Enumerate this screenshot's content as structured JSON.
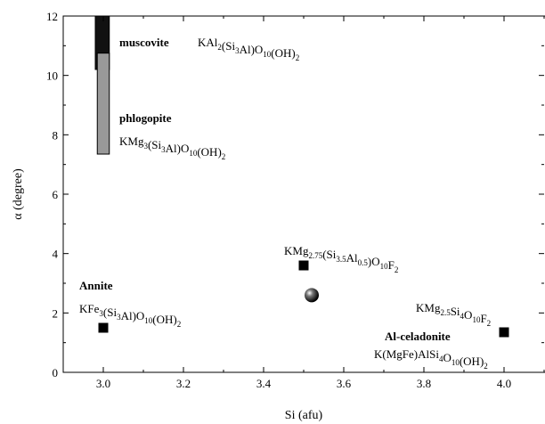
{
  "chart_data": {
    "type": "scatter",
    "xlabel": "Si (afu)",
    "ylabel": "α (degree)",
    "xlim": [
      2.9,
      4.1
    ],
    "ylim": [
      0,
      12
    ],
    "x_ticks": [
      "3.0",
      "3.2",
      "3.4",
      "3.6",
      "3.8",
      "4.0"
    ],
    "y_ticks": [
      "0",
      "2",
      "4",
      "6",
      "8",
      "10",
      "12"
    ],
    "grid": false,
    "ranges": [
      {
        "id": "muscovite",
        "x_min": 2.98,
        "x_max": 3.015,
        "y_min": 10.2,
        "y_max": 12.0,
        "color": "#111111"
      },
      {
        "id": "phlogopite",
        "x_min": 2.985,
        "x_max": 3.015,
        "y_min": 7.35,
        "y_max": 10.75,
        "color": "#999999"
      }
    ],
    "points": [
      {
        "id": "annite",
        "x": 3.0,
        "y": 1.5,
        "marker": "square"
      },
      {
        "id": "kmg275",
        "x": 3.5,
        "y": 3.6,
        "marker": "square"
      },
      {
        "id": "al-celadonite",
        "x": 4.0,
        "y": 1.35,
        "marker": "square"
      },
      {
        "id": "sphere",
        "x": 3.52,
        "y": 2.6,
        "marker": "sphere"
      }
    ],
    "annotations": [
      {
        "id": "muscovite",
        "name": "muscovite",
        "formula": [
          [
            "KAl",
            ""
          ],
          [
            "2",
            "sub"
          ],
          [
            "(Si",
            ""
          ],
          [
            "3",
            "sub"
          ],
          [
            "Al)O",
            ""
          ],
          [
            "10",
            "sub"
          ],
          [
            "(OH)",
            ""
          ],
          [
            "2",
            "sub"
          ]
        ]
      },
      {
        "id": "phlogopite",
        "name": "phlogopite",
        "formula": [
          [
            "KMg",
            ""
          ],
          [
            "3",
            "sub"
          ],
          [
            "(Si",
            ""
          ],
          [
            "3",
            "sub"
          ],
          [
            "Al)O",
            ""
          ],
          [
            "10",
            "sub"
          ],
          [
            "(OH)",
            ""
          ],
          [
            "2",
            "sub"
          ]
        ]
      },
      {
        "id": "annite",
        "name": "Annite",
        "formula": [
          [
            "KFe",
            ""
          ],
          [
            "3",
            "sub"
          ],
          [
            "(Si",
            ""
          ],
          [
            "3",
            "sub"
          ],
          [
            "Al)O",
            ""
          ],
          [
            "10",
            "sub"
          ],
          [
            "(OH)",
            ""
          ],
          [
            "2",
            "sub"
          ]
        ]
      },
      {
        "id": "kmg275",
        "name": "",
        "formula": [
          [
            "KMg",
            ""
          ],
          [
            "2.75",
            "sub"
          ],
          [
            "(Si",
            ""
          ],
          [
            "3.5",
            "sub"
          ],
          [
            "Al",
            ""
          ],
          [
            "0.5",
            "sub"
          ],
          [
            ")O",
            ""
          ],
          [
            "10",
            "sub"
          ],
          [
            "F",
            ""
          ],
          [
            "2",
            "sub"
          ]
        ]
      },
      {
        "id": "kmg25",
        "name": "",
        "formula": [
          [
            "KMg",
            ""
          ],
          [
            "2.5",
            "sub"
          ],
          [
            "Si",
            ""
          ],
          [
            "4",
            "sub"
          ],
          [
            "O",
            ""
          ],
          [
            "10",
            "sub"
          ],
          [
            "F",
            ""
          ],
          [
            "2",
            "sub"
          ]
        ]
      },
      {
        "id": "al-celadonite",
        "name": "Al-celadonite",
        "formula": [
          [
            "K(MgFe)AlSi",
            ""
          ],
          [
            "4",
            "sub"
          ],
          [
            "O",
            ""
          ],
          [
            "10",
            "sub"
          ],
          [
            "(OH)",
            ""
          ],
          [
            "2",
            "sub"
          ]
        ]
      }
    ]
  }
}
